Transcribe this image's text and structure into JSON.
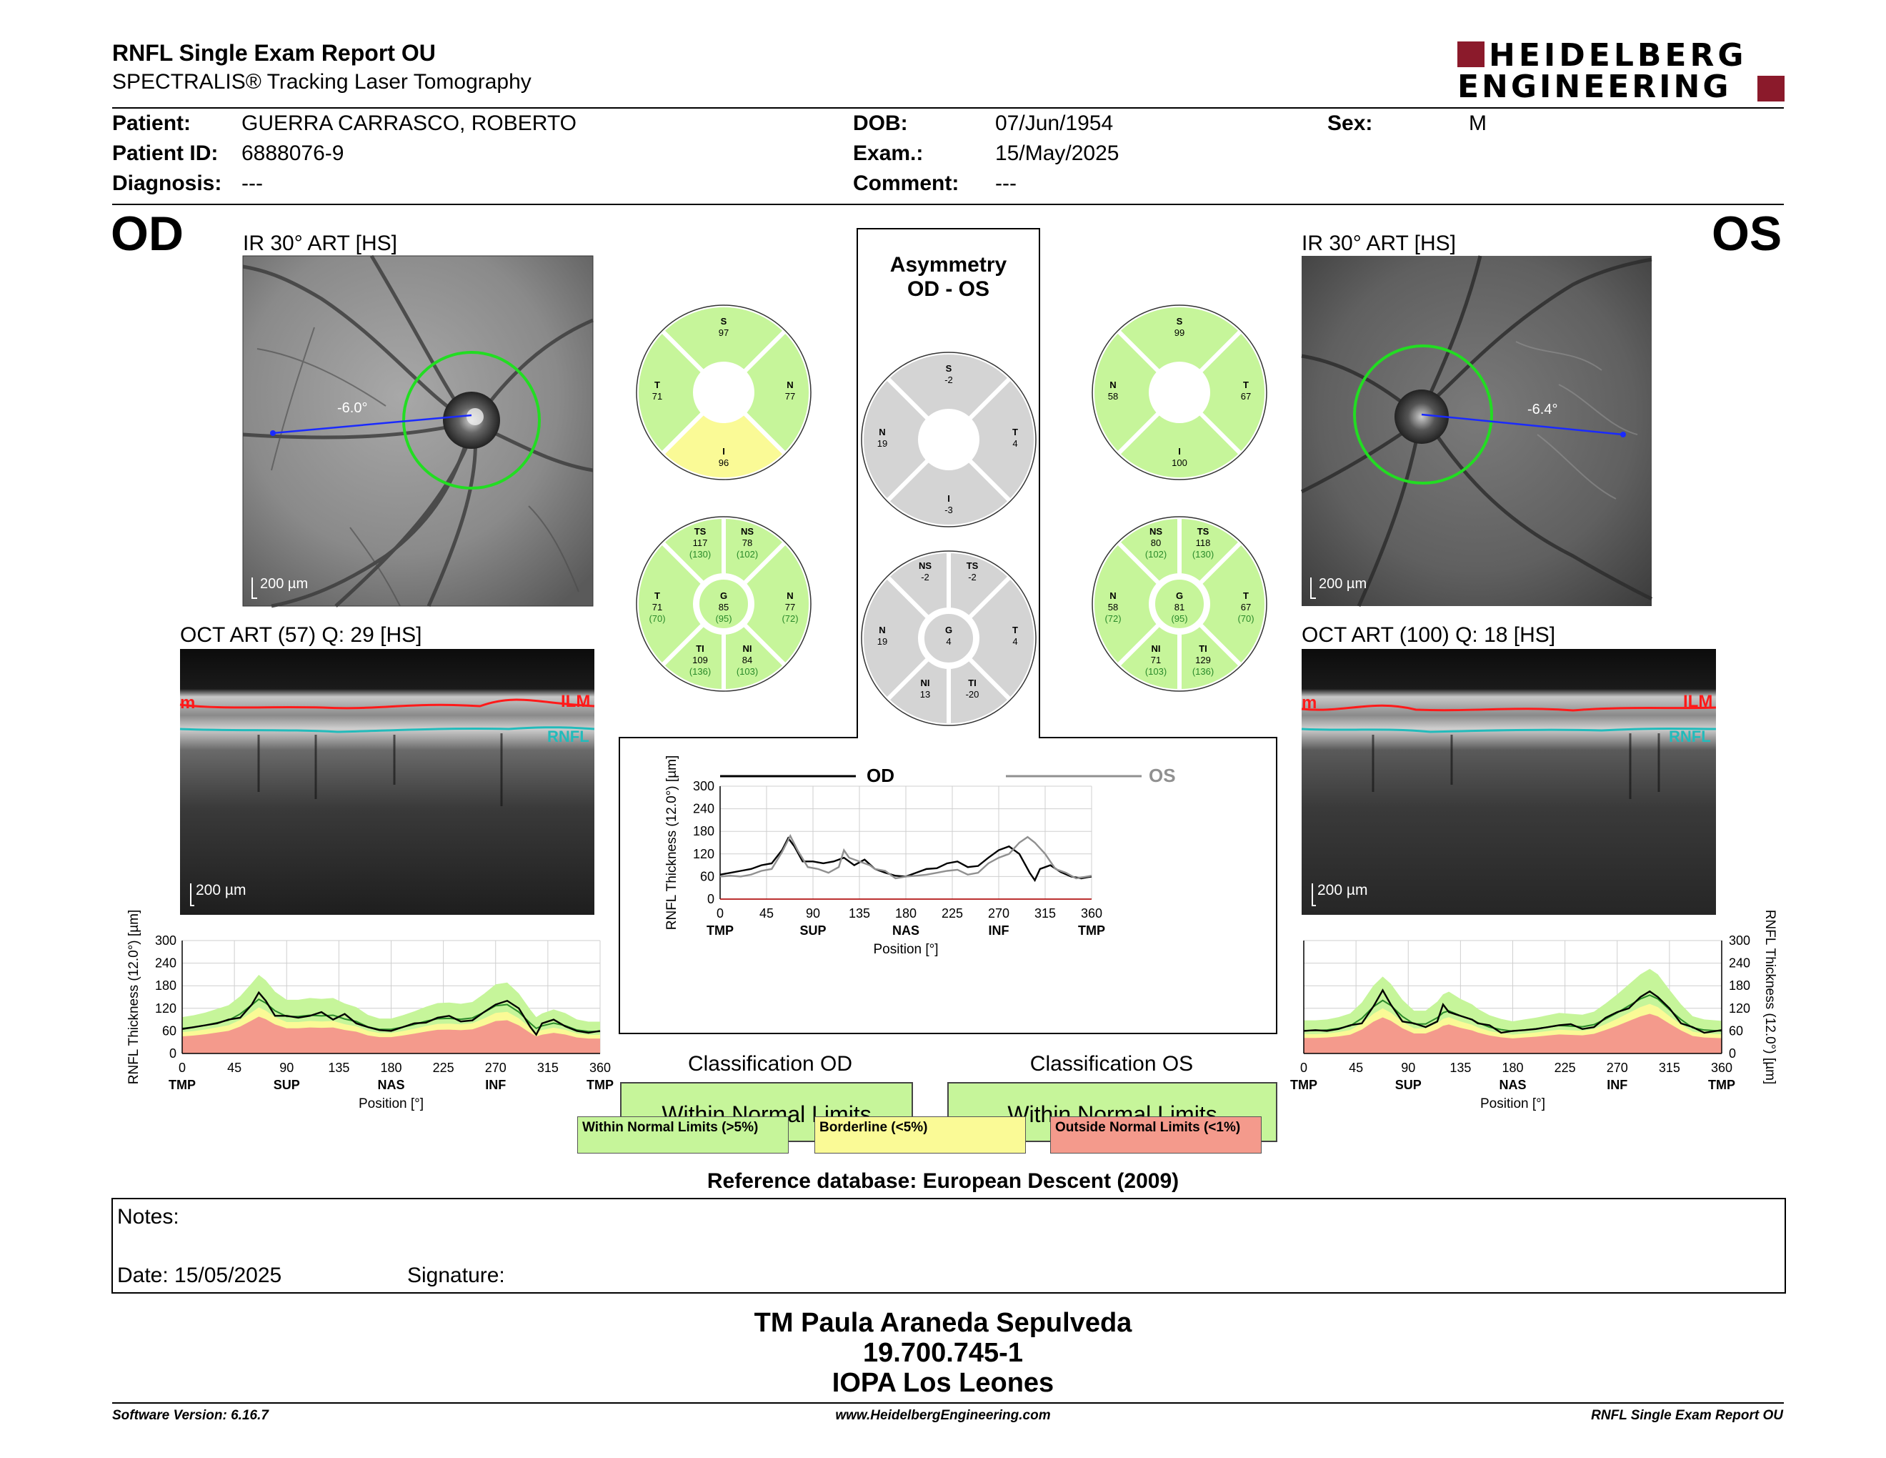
{
  "header": {
    "title": "RNFL Single Exam Report OU",
    "subtitle": "SPECTRALIS® Tracking Laser Tomography",
    "logo_line1": "HEIDELBERG",
    "logo_line2": "ENGINEERING"
  },
  "patient": {
    "patient_label": "Patient:",
    "patient_value": "GUERRA CARRASCO, ROBERTO",
    "id_label": "Patient ID:",
    "id_value": "6888076-9",
    "diag_label": "Diagnosis:",
    "diag_value": "---",
    "dob_label": "DOB:",
    "dob_value": "07/Jun/1954",
    "exam_label": "Exam.:",
    "exam_value": "15/May/2025",
    "comment_label": "Comment:",
    "comment_value": "---",
    "sex_label": "Sex:",
    "sex_value": "M"
  },
  "od": {
    "eye": "OD",
    "ir_caption": "IR 30° ART [HS]",
    "angle": "-6.0°",
    "scale": "200 µm",
    "oct_caption": "OCT ART (57) Q: 29 [HS]",
    "oct_scale": "200 µm",
    "ilm": "ILM",
    "ilm_left": "m",
    "rnfl": "RNFL",
    "sectors4": {
      "S": "97",
      "T": "71",
      "N": "77",
      "I": "96"
    },
    "sectors6": {
      "TS": "117",
      "TS_ref": "(130)",
      "NS": "78",
      "NS_ref": "(102)",
      "T": "71",
      "T_ref": "(70)",
      "G": "85",
      "G_ref": "(95)",
      "N": "77",
      "N_ref": "(72)",
      "TI": "109",
      "TI_ref": "(136)",
      "NI": "84",
      "NI_ref": "(103)"
    },
    "classification_title": "Classification OD",
    "classification": "Within Normal Limits"
  },
  "os": {
    "eye": "OS",
    "ir_caption": "IR 30° ART [HS]",
    "angle": "-6.4°",
    "scale": "200 µm",
    "oct_caption": "OCT ART (100) Q: 18 [HS]",
    "oct_scale": "200 µm",
    "ilm": "ILM",
    "ilm_left": "m",
    "rnfl": "RNFL",
    "sectors4": {
      "S": "99",
      "N": "58",
      "T": "67",
      "I": "100"
    },
    "sectors6": {
      "NS": "80",
      "NS_ref": "(102)",
      "TS": "118",
      "TS_ref": "(130)",
      "N": "58",
      "N_ref": "(72)",
      "G": "81",
      "G_ref": "(95)",
      "T": "67",
      "T_ref": "(70)",
      "NI": "71",
      "NI_ref": "(103)",
      "TI": "129",
      "TI_ref": "(136)"
    },
    "classification_title": "Classification OS",
    "classification": "Within Normal Limits"
  },
  "asym": {
    "title1": "Asymmetry",
    "title2": "OD - OS",
    "sectors4": {
      "S": "-2",
      "N": "19",
      "T": "4",
      "I": "-3"
    },
    "sectors6": {
      "NS": "-2",
      "TS": "-2",
      "N": "19",
      "G": "4",
      "T": "4",
      "NI": "13",
      "TI": "-20"
    }
  },
  "colors": {
    "normal": "#c6f59a",
    "borderline": "#fafa96",
    "outside": "#f49a8c",
    "gray": "#d4d4d4",
    "od_line": "#000000",
    "os_line": "#909090",
    "circle": "#22dd22"
  },
  "legend": {
    "normal": "Within Normal Limits (>5%)",
    "borderline": "Borderline (<5%)",
    "outside": "Outside Normal Limits (<1%)"
  },
  "reference_db": "Reference database: European Descent (2009)",
  "notes": {
    "label": "Notes:",
    "date_label": "Date: 15/05/2025",
    "signature_label": "Signature:"
  },
  "signature": {
    "line1": "TM Paula Araneda Sepulveda",
    "line2": "19.700.745-1",
    "line3": "IOPA Los Leones"
  },
  "footer": {
    "left": "Software Version: 6.16.7",
    "center": "www.HeidelbergEngineering.com",
    "right": "RNFL Single Exam Report OU"
  },
  "chart_data": [
    {
      "type": "line",
      "name": "compare",
      "ylabel": "RNFL Thickness (12.0°) [µm]",
      "xlabel": "Position [°]",
      "ylim": [
        0,
        300
      ],
      "xlim": [
        0,
        360
      ],
      "yticks": [
        0,
        60,
        120,
        180,
        240,
        300
      ],
      "xticks": [
        0,
        45,
        90,
        135,
        180,
        225,
        270,
        315,
        360
      ],
      "xregions": [
        "TMP",
        "SUP",
        "NAS",
        "INF",
        "TMP"
      ],
      "legend": [
        "OD",
        "OS"
      ],
      "series": [
        {
          "name": "OD",
          "x": [
            0,
            10,
            20,
            30,
            40,
            50,
            60,
            66,
            72,
            80,
            90,
            100,
            110,
            120,
            130,
            140,
            150,
            160,
            170,
            180,
            190,
            200,
            210,
            220,
            230,
            240,
            250,
            260,
            270,
            280,
            290,
            300,
            305,
            310,
            320,
            330,
            340,
            350,
            360
          ],
          "values": [
            65,
            70,
            75,
            80,
            90,
            95,
            130,
            162,
            140,
            100,
            100,
            95,
            100,
            110,
            90,
            105,
            80,
            70,
            62,
            60,
            70,
            80,
            82,
            95,
            100,
            85,
            88,
            110,
            130,
            140,
            120,
            70,
            50,
            80,
            90,
            72,
            60,
            55,
            60
          ]
        },
        {
          "name": "OS",
          "x": [
            0,
            10,
            20,
            30,
            40,
            50,
            60,
            68,
            75,
            85,
            95,
            105,
            115,
            120,
            125,
            135,
            145,
            150,
            160,
            170,
            180,
            190,
            200,
            210,
            220,
            230,
            240,
            250,
            260,
            270,
            280,
            290,
            298,
            305,
            315,
            325,
            335,
            345,
            360
          ],
          "values": [
            60,
            62,
            60,
            65,
            75,
            80,
            125,
            168,
            130,
            85,
            80,
            70,
            85,
            130,
            110,
            100,
            90,
            80,
            75,
            55,
            60,
            62,
            65,
            70,
            75,
            78,
            65,
            70,
            95,
            110,
            120,
            150,
            165,
            150,
            120,
            80,
            70,
            55,
            62
          ]
        }
      ]
    },
    {
      "type": "line",
      "name": "od-profile",
      "ylabel": "RNFL Thickness (12.0°) [µm]",
      "xlabel": "Position [°]",
      "ylim": [
        0,
        300
      ],
      "xlim": [
        0,
        360
      ],
      "yticks": [
        0,
        60,
        120,
        180,
        240,
        300
      ],
      "xticks": [
        0,
        45,
        90,
        135,
        180,
        225,
        270,
        315,
        360
      ],
      "xregions": [
        "TMP",
        "SUP",
        "NAS",
        "INF",
        "TMP"
      ],
      "series": [
        {
          "name": "OD",
          "x": [
            0,
            10,
            20,
            30,
            40,
            50,
            60,
            66,
            72,
            80,
            90,
            100,
            110,
            120,
            130,
            140,
            150,
            160,
            170,
            180,
            190,
            200,
            210,
            220,
            230,
            240,
            250,
            260,
            270,
            280,
            290,
            300,
            305,
            310,
            320,
            330,
            340,
            350,
            360
          ],
          "values": [
            65,
            70,
            75,
            80,
            90,
            95,
            130,
            162,
            140,
            100,
            100,
            95,
            100,
            110,
            90,
            105,
            80,
            70,
            62,
            60,
            70,
            80,
            82,
            95,
            100,
            85,
            88,
            110,
            130,
            140,
            120,
            70,
            50,
            80,
            90,
            72,
            60,
            55,
            60
          ]
        }
      ]
    },
    {
      "type": "line",
      "name": "os-profile",
      "ylabel": "RNFL Thickness (12.0°) [µm]",
      "xlabel": "Position [°]",
      "ylim": [
        0,
        300
      ],
      "xlim": [
        0,
        360
      ],
      "yticks": [
        0,
        60,
        120,
        180,
        240,
        300
      ],
      "xticks": [
        0,
        45,
        90,
        135,
        180,
        225,
        270,
        315,
        360
      ],
      "xregions": [
        "TMP",
        "SUP",
        "NAS",
        "INF",
        "TMP"
      ],
      "series": [
        {
          "name": "OS",
          "x": [
            0,
            10,
            20,
            30,
            40,
            50,
            60,
            68,
            75,
            85,
            95,
            105,
            115,
            120,
            125,
            135,
            145,
            150,
            160,
            170,
            180,
            190,
            200,
            210,
            220,
            230,
            240,
            250,
            260,
            270,
            280,
            290,
            298,
            305,
            315,
            325,
            335,
            345,
            360
          ],
          "values": [
            60,
            62,
            60,
            65,
            75,
            80,
            125,
            168,
            130,
            85,
            80,
            70,
            85,
            130,
            110,
            100,
            90,
            80,
            75,
            55,
            60,
            62,
            65,
            70,
            75,
            78,
            65,
            70,
            95,
            110,
            120,
            150,
            165,
            150,
            120,
            80,
            70,
            55,
            62
          ]
        }
      ]
    }
  ]
}
